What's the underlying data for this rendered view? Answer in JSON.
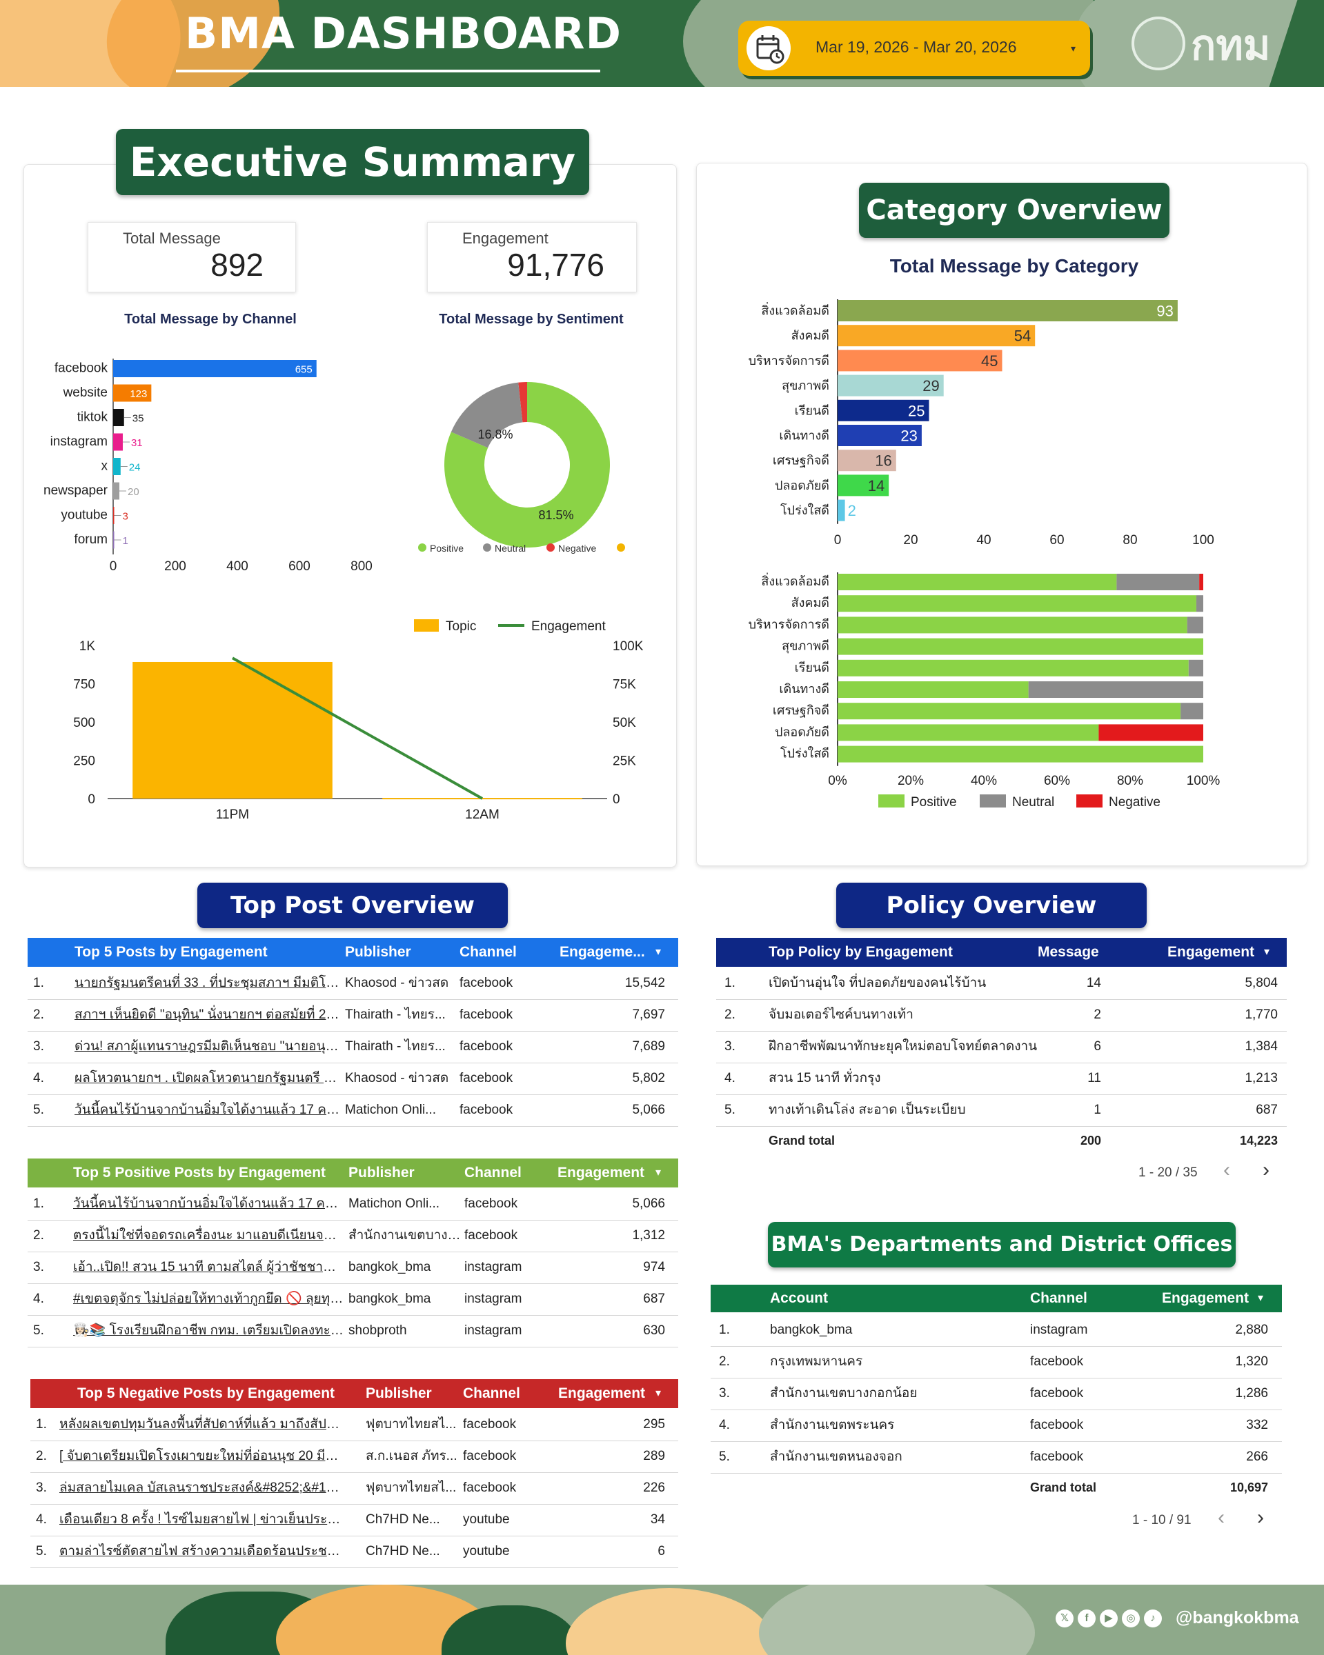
{
  "header": {
    "title": "BMA DASHBOARD",
    "date_range": "Mar 19, 2026 - Mar 20, 2026",
    "logo_text": "กทม"
  },
  "executive": {
    "title": "Executive Summary",
    "kpi_total_message_label": "Total Message",
    "kpi_total_message_value": "892",
    "kpi_engagement_label": "Engagement",
    "kpi_engagement_value": "91,776",
    "channel_chart_title": "Total Message by Channel",
    "sentiment_chart_title": "Total Message by Sentiment"
  },
  "category": {
    "title": "Category Overview",
    "chart_title": "Total Message by Category"
  },
  "chart_data": [
    {
      "type": "bar",
      "title": "Total Message by Channel",
      "orientation": "horizontal",
      "categories": [
        "facebook",
        "website",
        "tiktok",
        "instagram",
        "x",
        "newspaper",
        "youtube",
        "forum"
      ],
      "values": [
        655,
        123,
        35,
        31,
        24,
        20,
        3,
        1
      ],
      "colors": [
        "#1a73e8",
        "#f57c00",
        "#111111",
        "#e91e8c",
        "#12b5cb",
        "#9e9e9e",
        "#d93025",
        "#8e6fb5"
      ],
      "xlim": [
        0,
        800
      ],
      "xticks": [
        "0",
        "200",
        "400",
        "600",
        "800"
      ]
    },
    {
      "type": "pie",
      "title": "Total Message by Sentiment",
      "donut": true,
      "labels": [
        "Positive",
        "Neutral",
        "Negative",
        ""
      ],
      "values": [
        81.5,
        16.8,
        1.7,
        0
      ],
      "colors": [
        "#8bd346",
        "#8c8c8c",
        "#e53935",
        "#f3b400"
      ],
      "label_texts": [
        "81.5%",
        "16.8%"
      ],
      "legend_position": "bottom"
    },
    {
      "type": "bar",
      "combo": true,
      "categories": [
        "11PM",
        "12AM"
      ],
      "series": [
        {
          "name": "Topic",
          "kind": "bar",
          "axis": "left",
          "color": "#fbb400",
          "values": [
            892,
            4
          ]
        },
        {
          "name": "Engagement",
          "kind": "line",
          "axis": "right",
          "color": "#3a8d3a",
          "values": [
            91776,
            0
          ]
        }
      ],
      "ylim_left": [
        0,
        1000
      ],
      "ylim_right": [
        0,
        100000
      ],
      "yticks_left": [
        "0",
        "250",
        "500",
        "750",
        "1K"
      ],
      "yticks_right": [
        "0",
        "25K",
        "50K",
        "75K",
        "100K"
      ],
      "legend_position": "top-right"
    },
    {
      "type": "bar",
      "title": "Total Message by Category",
      "orientation": "horizontal",
      "categories": [
        "สิ่งแวดล้อมดี",
        "สังคมดี",
        "บริหารจัดการดี",
        "สุขภาพดี",
        "เรียนดี",
        "เดินทางดี",
        "เศรษฐกิจดี",
        "ปลอดภัยดี",
        "โปร่งใสดี"
      ],
      "values": [
        93,
        54,
        45,
        29,
        25,
        23,
        16,
        14,
        2
      ],
      "colors": [
        "#8aa74f",
        "#f9a825",
        "#ff8a50",
        "#a8d8d4",
        "#0d2a8c",
        "#1f3fb3",
        "#d9b7ab",
        "#3fd84a",
        "#5ec8e6"
      ],
      "xlim": [
        0,
        100
      ],
      "xticks": [
        "0",
        "20",
        "40",
        "60",
        "80",
        "100"
      ]
    },
    {
      "type": "bar",
      "stacked_percent": true,
      "orientation": "horizontal",
      "categories": [
        "สิ่งแวดล้อมดี",
        "สังคมดี",
        "บริหารจัดการดี",
        "สุขภาพดี",
        "เรียนดี",
        "เดินทางดี",
        "เศรษฐกิจดี",
        "ปลอดภัยดี",
        "โปร่งใสดี"
      ],
      "series": [
        {
          "name": "Positive",
          "color": "#8bd346",
          "values": [
            76.3,
            98.1,
            95.6,
            100,
            96,
            52.2,
            93.8,
            71.4,
            100
          ]
        },
        {
          "name": "Neutral",
          "color": "#8c8c8c",
          "values": [
            22.6,
            1.9,
            4.4,
            0,
            4,
            47.8,
            6.2,
            0,
            0
          ]
        },
        {
          "name": "Negative",
          "color": "#e31a1c",
          "values": [
            1.1,
            0,
            0,
            0,
            0,
            0,
            0,
            28.6,
            0
          ]
        }
      ],
      "xticks": [
        "0%",
        "20%",
        "40%",
        "60%",
        "80%",
        "100%"
      ],
      "legend_position": "bottom"
    }
  ],
  "top_post": {
    "title": "Top Post Overview",
    "engagement_table": {
      "headers": [
        "Top 5 Posts by Engagement",
        "Publisher",
        "Channel",
        "Engageme...",
        "▾"
      ],
      "rows": [
        [
          "1.",
          "นายกรัฐมนตรีคนที่ 33 . ที่ประชุมสภาฯ มีมติโหวตใ...",
          "Khaosod - ข่าวสด",
          "facebook",
          "15,542"
        ],
        [
          "2.",
          "สภาฯ เห็นยิดดี \"อนุทิน\" นั่งนายกฯ ต่อสมัยที่ 2 หลังมี...",
          "Thairath - ไทยร...",
          "facebook",
          "7,697"
        ],
        [
          "3.",
          "ด่วน! สภาผู้แทนราษฎรมีมติเห็นชอบ \"นายอนุทิน ช...",
          "Thairath - ไทยร...",
          "facebook",
          "7,689"
        ],
        [
          "4.",
          "ผลโหวตนายกฯ . เปิดผลโหวตนายกรัฐมนตรี นายอ...",
          "Khaosod - ข่าวสด",
          "facebook",
          "5,802"
        ],
        [
          "5.",
          "วันนี้คนไร้บ้านจากบ้านอิ่มใจได้งานแล้ว 17 คน หล...",
          "Matichon Onli...",
          "facebook",
          "5,066"
        ]
      ]
    },
    "positive_table": {
      "headers": [
        "Top 5 Positive Posts by Engagement",
        "Publisher",
        "Channel",
        "Engagement",
        "▾"
      ],
      "rows": [
        [
          "1.",
          "วันนี้คนไร้บ้านจากบ้านอิ่มใจได้งานแล้ว 17 คน หลา...",
          "Matichon Onli...",
          "facebook",
          "5,066"
        ],
        [
          "2.",
          "ตรงนี้ไม่ใช่ที่จอดรถเครื่องนะ มาแอบดีเนียนจอดไม่ได้...",
          "สำนักงานเขตบางก...",
          "facebook",
          "1,312"
        ],
        [
          "3.",
          "เอ้า..เปิด!! สวน 15 นาที ตามสไตล์ ผู้ว่าชัชชาติ \"สว...",
          "bangkok_bma",
          "instagram",
          "974"
        ],
        [
          "4.",
          "#เขตจตุจักร ไม่ปล่อยให้ทางเท้ากูกยึด 🚫 ลุยทุบทาง...",
          "bangkok_bma",
          "instagram",
          "687"
        ],
        [
          "5.",
          "👩🏻‍🍳📚 โรงเรียนฝึกอาชีพ กทม. เตรียมเปิดลงทะเบียน...",
          "shobproth",
          "instagram",
          "630"
        ]
      ]
    },
    "negative_table": {
      "headers": [
        "Top 5 Negative Posts by Engagement",
        "Publisher",
        "Channel",
        "Engagement",
        "▾"
      ],
      "rows": [
        [
          "1.",
          "หลังผลเขตปทุมวันลงพื้นที่สัปดาห์ที่แล้ว มาถึงสัปดาห์นี้...",
          "ฟุตบาทไทยสไ...",
          "facebook",
          "295"
        ],
        [
          "2.",
          "[ จับตาเตรียมเปิดโรงเผาขยะใหม่ที่อ่อนนุช 20 มีนาคม...",
          "ส.ก.เนอส ภัทร...",
          "facebook",
          "289"
        ],
        [
          "3.",
          "ล่มสลายไมเคล บัสเลนราชประสงค์&#8252;&#1293...",
          "ฟุตบาทไทยสไ...",
          "facebook",
          "226"
        ],
        [
          "4.",
          "เดือนเดียว 8 ครั้ง ! ไรซ์ไมยสายไฟ | ข่าวเย็นประเด็นร้อน",
          "Ch7HD Ne...",
          "youtube",
          "34"
        ],
        [
          "5.",
          "ตามล่าไรซ์ตัดสายไฟ สร้างความเดือดร้อนประชาชน | ข่า...",
          "Ch7HD Ne...",
          "youtube",
          "6"
        ]
      ]
    }
  },
  "policy": {
    "title": "Policy Overview",
    "headers": [
      "Top Policy by Engagement",
      "Message",
      "Engagement",
      "▾"
    ],
    "rows": [
      [
        "1.",
        "เปิดบ้านอุ่นใจ ที่ปลอดภัยของคนไร้บ้าน",
        "14",
        "5,804"
      ],
      [
        "2.",
        "จับมอเตอร์ไซค์บนทางเท้า",
        "2",
        "1,770"
      ],
      [
        "3.",
        "ฝึกอาชีพพัฒนาทักษะยุคใหม่ตอบโจทย์ตลาดงาน",
        "6",
        "1,384"
      ],
      [
        "4.",
        "สวน 15 นาที ทั่วกรุง",
        "11",
        "1,213"
      ],
      [
        "5.",
        "ทางเท้าเดินโล่ง สะอาด เป็นระเบียบ",
        "1",
        "687"
      ]
    ],
    "grand_total_label": "Grand total",
    "grand_total_message": "200",
    "grand_total_engagement": "14,223",
    "pagination": "1 - 20 / 35"
  },
  "departments": {
    "title": "BMA's Departments and District Offices",
    "headers": [
      "Account",
      "Channel",
      "Engagement",
      "▾"
    ],
    "rows": [
      [
        "1.",
        "bangkok_bma",
        "instagram",
        "2,880"
      ],
      [
        "2.",
        "กรุงเทพมหานคร",
        "facebook",
        "1,320"
      ],
      [
        "3.",
        "สำนักงานเขตบางกอกน้อย",
        "facebook",
        "1,286"
      ],
      [
        "4.",
        "สำนักงานเขตพระนคร",
        "facebook",
        "332"
      ],
      [
        "5.",
        "สำนักงานเขตหนองจอก",
        "facebook",
        "266"
      ]
    ],
    "grand_total_label": "Grand total",
    "grand_total_engagement": "10,697",
    "pagination": "1 - 10 / 91"
  },
  "footer": {
    "handle": "@bangkokbma",
    "social_icons": [
      "x-icon",
      "facebook-icon",
      "youtube-icon",
      "instagram-icon",
      "tiktok-icon"
    ]
  }
}
